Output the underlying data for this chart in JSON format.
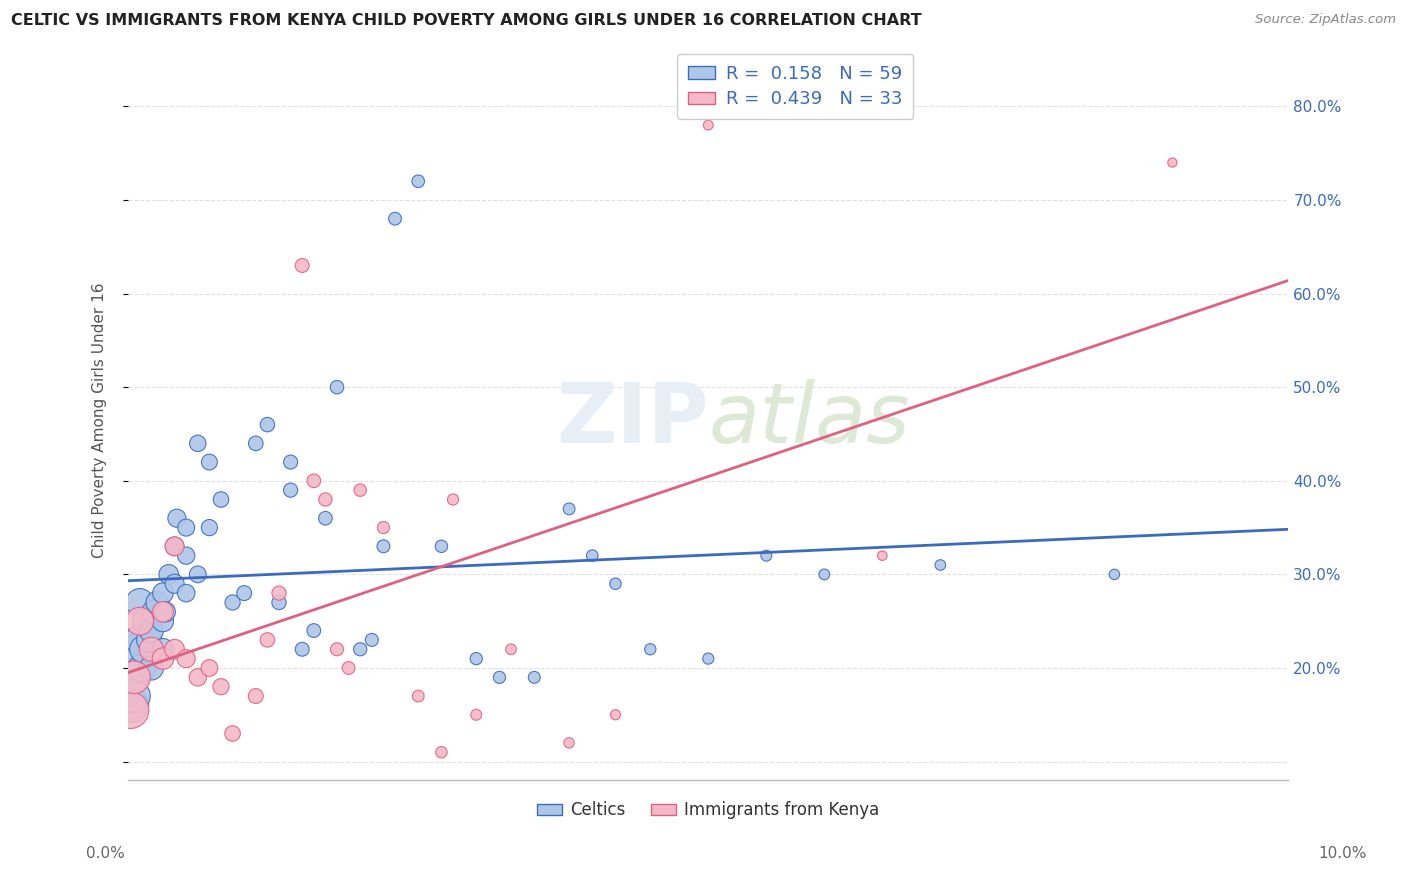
{
  "title": "CELTIC VS IMMIGRANTS FROM KENYA CHILD POVERTY AMONG GIRLS UNDER 16 CORRELATION CHART",
  "source": "Source: ZipAtlas.com",
  "ylabel": "Child Poverty Among Girls Under 16",
  "legend_celtics": "Celtics",
  "legend_kenya": "Immigrants from Kenya",
  "r_celtics": 0.158,
  "n_celtics": 59,
  "r_kenya": 0.439,
  "n_kenya": 33,
  "celtics_color": "#aec6e8",
  "kenya_color": "#f5b8c8",
  "line_celtics_color": "#3a6bbf",
  "line_kenya_color": "#e06080",
  "celtics_x": [
    0.0002,
    0.0003,
    0.0005,
    0.0007,
    0.001,
    0.001,
    0.0012,
    0.0013,
    0.0015,
    0.0018,
    0.002,
    0.002,
    0.0022,
    0.0025,
    0.003,
    0.003,
    0.003,
    0.0032,
    0.0035,
    0.004,
    0.004,
    0.0042,
    0.005,
    0.005,
    0.005,
    0.006,
    0.006,
    0.007,
    0.007,
    0.008,
    0.009,
    0.01,
    0.011,
    0.012,
    0.013,
    0.014,
    0.014,
    0.015,
    0.016,
    0.017,
    0.018,
    0.02,
    0.021,
    0.022,
    0.023,
    0.025,
    0.027,
    0.03,
    0.032,
    0.035,
    0.038,
    0.04,
    0.042,
    0.045,
    0.05,
    0.055,
    0.06,
    0.07,
    0.085
  ],
  "celtics_y": [
    0.19,
    0.16,
    0.17,
    0.22,
    0.23,
    0.27,
    0.2,
    0.22,
    0.25,
    0.23,
    0.2,
    0.24,
    0.26,
    0.27,
    0.22,
    0.25,
    0.28,
    0.26,
    0.3,
    0.29,
    0.33,
    0.36,
    0.28,
    0.32,
    0.35,
    0.3,
    0.44,
    0.35,
    0.42,
    0.38,
    0.27,
    0.28,
    0.44,
    0.46,
    0.27,
    0.39,
    0.42,
    0.22,
    0.24,
    0.36,
    0.5,
    0.22,
    0.23,
    0.33,
    0.68,
    0.72,
    0.33,
    0.21,
    0.19,
    0.19,
    0.37,
    0.32,
    0.29,
    0.22,
    0.21,
    0.32,
    0.3,
    0.31,
    0.3
  ],
  "celtics_sizes": [
    700,
    600,
    550,
    500,
    450,
    400,
    400,
    380,
    350,
    320,
    300,
    300,
    280,
    260,
    240,
    230,
    220,
    210,
    200,
    190,
    180,
    170,
    160,
    155,
    150,
    145,
    140,
    135,
    130,
    125,
    120,
    115,
    110,
    108,
    106,
    104,
    102,
    100,
    98,
    96,
    94,
    90,
    88,
    86,
    84,
    82,
    80,
    78,
    76,
    74,
    72,
    70,
    68,
    66,
    64,
    62,
    60,
    58,
    56
  ],
  "kenya_x": [
    0.0002,
    0.0005,
    0.001,
    0.002,
    0.003,
    0.003,
    0.004,
    0.004,
    0.005,
    0.006,
    0.007,
    0.008,
    0.009,
    0.011,
    0.012,
    0.013,
    0.015,
    0.016,
    0.017,
    0.018,
    0.019,
    0.02,
    0.022,
    0.025,
    0.027,
    0.028,
    0.03,
    0.033,
    0.038,
    0.042,
    0.05,
    0.065,
    0.09
  ],
  "kenya_y": [
    0.155,
    0.19,
    0.25,
    0.22,
    0.21,
    0.26,
    0.22,
    0.33,
    0.21,
    0.19,
    0.2,
    0.18,
    0.13,
    0.17,
    0.23,
    0.28,
    0.63,
    0.4,
    0.38,
    0.22,
    0.2,
    0.39,
    0.35,
    0.17,
    0.11,
    0.38,
    0.15,
    0.22,
    0.12,
    0.15,
    0.78,
    0.32,
    0.74
  ],
  "kenya_sizes": [
    700,
    550,
    400,
    300,
    240,
    220,
    200,
    185,
    170,
    155,
    145,
    135,
    125,
    115,
    108,
    104,
    100,
    96,
    92,
    88,
    84,
    80,
    76,
    72,
    68,
    65,
    62,
    59,
    56,
    53,
    50,
    47,
    44
  ],
  "xlim": [
    0.0,
    0.1
  ],
  "ylim": [
    0.08,
    0.85
  ],
  "ytick_vals": [
    0.1,
    0.2,
    0.3,
    0.4,
    0.5,
    0.6,
    0.7,
    0.8
  ],
  "background_color": "#ffffff",
  "grid_color": "#e0e0e0"
}
